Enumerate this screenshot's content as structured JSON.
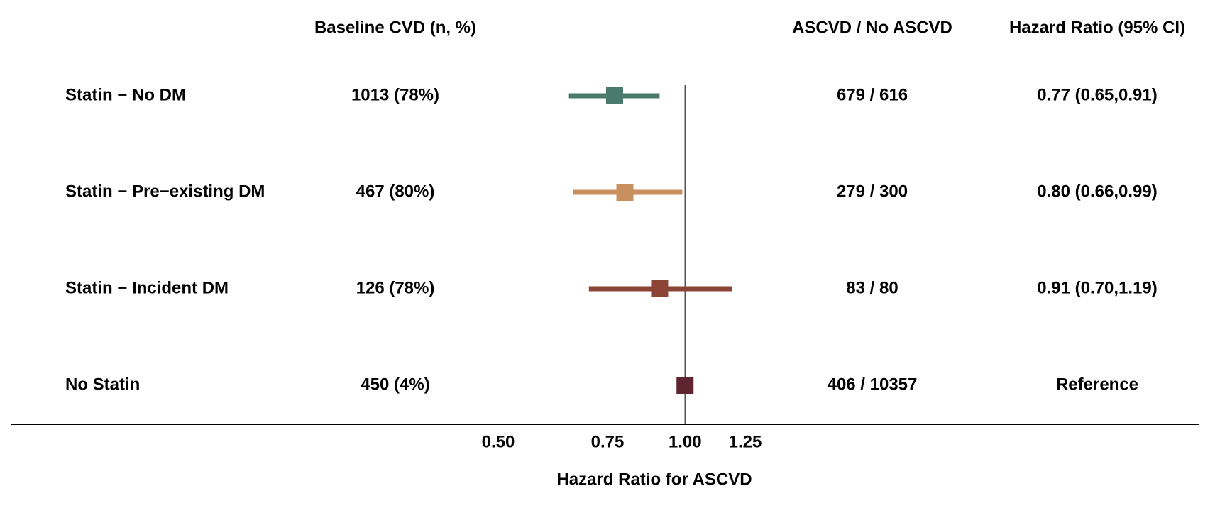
{
  "chart_data": {
    "type": "forest",
    "columns": [
      "Baseline CVD (n, %)",
      "ASCVD / No ASCVD",
      "Hazard Ratio (95% CI)"
    ],
    "categories": [
      "Statin − No DM",
      "Statin − Pre−existing DM",
      "Statin − Incident DM",
      "No Statin"
    ],
    "baseline": [
      "1013 (78%)",
      "467 (80%)",
      "126 (78%)",
      "450 (4%)"
    ],
    "events": [
      "679 / 616",
      "279 / 300",
      "83 / 80",
      "406 / 10357"
    ],
    "values": [
      0.77,
      0.8,
      0.91,
      1.0
    ],
    "value_labels": [
      "0.77 (0.65,0.91)",
      "0.80 (0.66,0.99)",
      "0.91 (0.70,1.19)",
      "Reference"
    ],
    "lower": [
      0.65,
      0.66,
      0.7,
      null
    ],
    "upper": [
      0.91,
      0.99,
      1.19,
      null
    ],
    "colors": [
      "#4a7a6c",
      "#c98f5f",
      "#8c4437",
      "#5e2430"
    ],
    "xlabel": "Hazard Ratio for ASCVD",
    "log_x": true,
    "reference_line": 1,
    "xlim": [
      0.5,
      1.25
    ],
    "xticks": [
      {
        "value": 0.5,
        "label": "0.50"
      },
      {
        "value": 0.75,
        "label": "0.75"
      },
      {
        "value": 1,
        "label": "1.00"
      },
      {
        "value": 1.25,
        "label": "1.25"
      }
    ]
  }
}
